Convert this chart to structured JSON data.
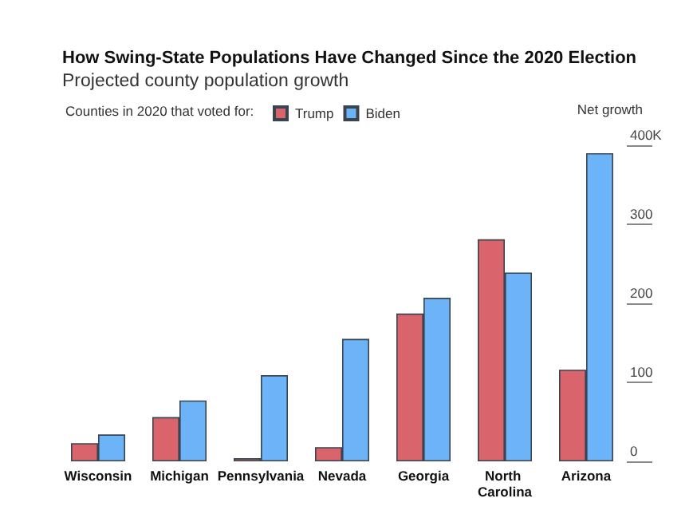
{
  "chart_data": {
    "type": "bar",
    "title": "How Swing-State Populations Have Changed Since the 2020 Election",
    "subtitle": "Projected county population growth",
    "ylabel": "Net growth",
    "legend_title": "Counties in 2020 that voted for:",
    "categories": [
      "Wisconsin",
      "Michigan",
      "Pennsylvania",
      "Nevada",
      "Georgia",
      "North Carolina",
      "Arizona"
    ],
    "series": [
      {
        "name": "Trump",
        "color": "#d9646b",
        "values": [
          23,
          56,
          4,
          18,
          187,
          281,
          116
        ]
      },
      {
        "name": "Biden",
        "color": "#6cb4f7",
        "values": [
          34,
          77,
          109,
          155,
          207,
          239,
          390
        ]
      }
    ],
    "ylim": [
      0,
      400
    ],
    "yticks": [
      0,
      100,
      200,
      300,
      {
        "value": 400,
        "label": "400K"
      }
    ],
    "grid": false,
    "legend": "top left"
  }
}
